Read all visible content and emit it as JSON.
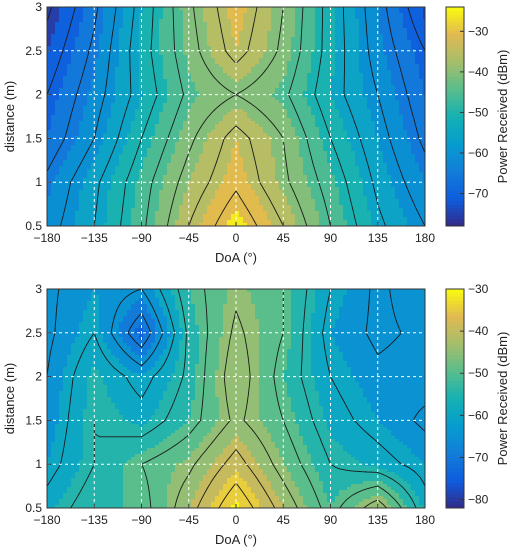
{
  "chart_data": [
    {
      "type": "heatmap",
      "subtype": "filled-contour",
      "title": "",
      "xlabel": "DoA (°)",
      "ylabel": "distance (m)",
      "xlim": [
        -180,
        180
      ],
      "ylim": [
        0.5,
        3
      ],
      "x_ticks": [
        -180,
        -135,
        -90,
        -45,
        0,
        45,
        90,
        135,
        180
      ],
      "y_ticks": [
        0.5,
        1,
        1.5,
        2,
        2.5,
        3
      ],
      "x_tick_labels": [
        "−180",
        "−135",
        "−90",
        "−45",
        "0",
        "45",
        "90",
        "135",
        "180"
      ],
      "y_tick_labels": [
        "0.5",
        "1",
        "1.5",
        "2",
        "2.5",
        "3"
      ],
      "grid": true,
      "colorbar": {
        "label": "Power Received (dBm)",
        "range": [
          -78,
          -24
        ],
        "ticks": [
          -70,
          -60,
          -50,
          -40,
          -30
        ],
        "tick_labels": [
          "−70",
          "−60",
          "−50",
          "−40",
          "−30"
        ],
        "colormap": "parula"
      },
      "x": [
        -180,
        -135,
        -90,
        -45,
        0,
        45,
        90,
        135,
        180
      ],
      "y": [
        0.5,
        1,
        1.5,
        2,
        2.5,
        3
      ],
      "z": [
        [
          -62,
          -55,
          -46,
          -35,
          -26,
          -35,
          -45,
          -54,
          -60
        ],
        [
          -64,
          -56,
          -47,
          -38,
          -31,
          -39,
          -47,
          -56,
          -63
        ],
        [
          -68,
          -60,
          -50,
          -41,
          -33,
          -40,
          -50,
          -58,
          -66
        ],
        [
          -70,
          -62,
          -53,
          -44,
          -40,
          -44,
          -53,
          -60,
          -68
        ],
        [
          -73,
          -64,
          -52,
          -42,
          -33,
          -41,
          -52,
          -62,
          -70
        ],
        [
          -76,
          -66,
          -53,
          -41,
          -31,
          -40,
          -52,
          -63,
          -74
        ]
      ]
    },
    {
      "type": "heatmap",
      "subtype": "filled-contour",
      "title": "",
      "xlabel": "DoA (°)",
      "ylabel": "distance (m)",
      "xlim": [
        -180,
        180
      ],
      "ylim": [
        0.5,
        3
      ],
      "x_ticks": [
        -180,
        -135,
        -90,
        -45,
        0,
        45,
        90,
        135,
        180
      ],
      "y_ticks": [
        0.5,
        1,
        1.5,
        2,
        2.5,
        3
      ],
      "x_tick_labels": [
        "−180",
        "−135",
        "−90",
        "−45",
        "0",
        "45",
        "90",
        "135",
        "180"
      ],
      "y_tick_labels": [
        "0.5",
        "1",
        "1.5",
        "2",
        "2.5",
        "3"
      ],
      "grid": true,
      "colorbar": {
        "label": "Power Received (dBm)",
        "range": [
          -82,
          -30
        ],
        "ticks": [
          -80,
          -70,
          -60,
          -50,
          -40,
          -30
        ],
        "tick_labels": [
          "−80",
          "−70",
          "−60",
          "−50",
          "−40",
          "−30"
        ],
        "colormap": "parula"
      },
      "x": [
        -180,
        -135,
        -90,
        -45,
        0,
        45,
        90,
        135,
        180
      ],
      "y": [
        0.5,
        1,
        1.5,
        2,
        2.5,
        3
      ],
      "z": [
        [
          -58,
          -52,
          -52,
          -42,
          -31,
          -42,
          -52,
          -42,
          -58
        ],
        [
          -62,
          -55,
          -50,
          -46,
          -38,
          -47,
          -55,
          -58,
          -62
        ],
        [
          -64,
          -55,
          -58,
          -52,
          -44,
          -50,
          -58,
          -62,
          -66
        ],
        [
          -65,
          -56,
          -62,
          -54,
          -42,
          -52,
          -60,
          -64,
          -63
        ],
        [
          -66,
          -60,
          -74,
          -54,
          -44,
          -50,
          -62,
          -66,
          -64
        ],
        [
          -66,
          -62,
          -65,
          -52,
          -46,
          -50,
          -60,
          -66,
          -62
        ]
      ]
    }
  ]
}
